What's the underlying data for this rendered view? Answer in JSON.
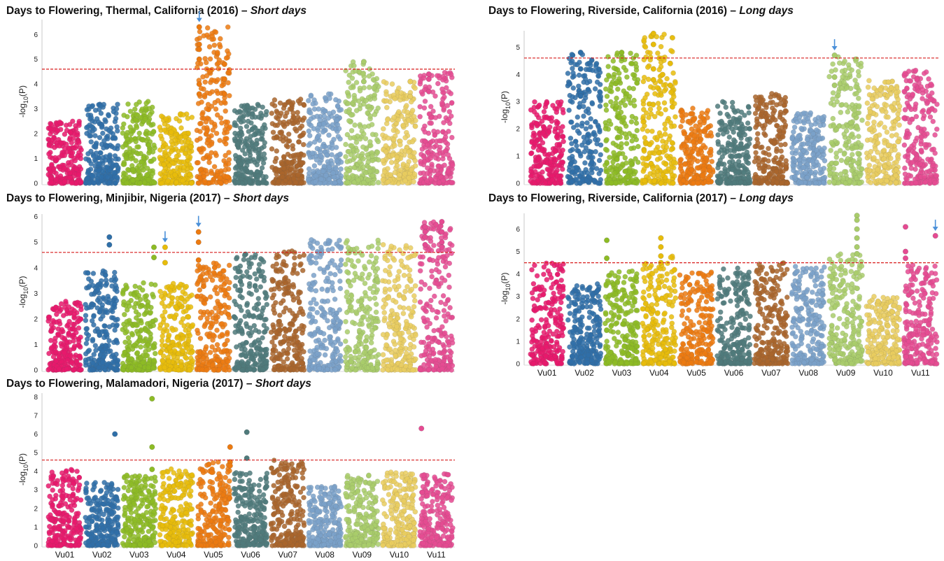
{
  "chart_data": [
    {
      "id": "p1",
      "type": "scatter",
      "subtype": "manhattan",
      "title": "Days to Flowering, Thermal, California (2016) – ",
      "title_condition": "Short days",
      "ylabel": "-log10(P)",
      "ylim": [
        0,
        6.6
      ],
      "yticks": [
        0,
        1,
        2,
        3,
        4,
        5,
        6
      ],
      "threshold": 4.6,
      "show_xlabels": false,
      "chromosomes": [
        "Vu01",
        "Vu02",
        "Vu03",
        "Vu04",
        "Vu05",
        "Vu06",
        "Vu07",
        "Vu08",
        "Vu09",
        "Vu10",
        "Vu11"
      ],
      "chrom_colors": [
        "#e8196c",
        "#2f6fa8",
        "#8dbb25",
        "#e7bc0b",
        "#ec7a10",
        "#4f7a7b",
        "#a9652b",
        "#7aa1c9",
        "#a9cc6b",
        "#e9cd5f",
        "#e54b92"
      ],
      "chrom_max": [
        2.5,
        3.2,
        3.3,
        2.8,
        6.3,
        3.2,
        3.5,
        3.6,
        4.9,
        4.1,
        4.5
      ],
      "peaks": [
        {
          "chrom": 4,
          "pos": 0.12,
          "values": [
            6.3,
            5.6,
            5.4,
            5.0,
            4.0,
            3.6
          ]
        },
        {
          "chrom": 4,
          "pos": 0.8,
          "values": [
            4.8,
            4.2,
            3.6
          ]
        },
        {
          "chrom": 8,
          "pos": 0.55,
          "values": [
            4.9,
            4.1
          ]
        },
        {
          "chrom": 9,
          "pos": 0.8,
          "values": [
            4.1,
            3.5
          ]
        },
        {
          "chrom": 10,
          "pos": 0.3,
          "values": [
            4.4,
            4.2,
            3.7
          ]
        }
      ],
      "arrows": [
        {
          "chrom": 4,
          "pos": 0.12
        }
      ]
    },
    {
      "id": "p2",
      "type": "scatter",
      "subtype": "manhattan",
      "title": "Days to Flowering, Riverside, California (2016) – ",
      "title_condition": "Long days",
      "ylabel": "-log10(P)",
      "ylim": [
        0,
        5.6
      ],
      "yticks": [
        0,
        1,
        2,
        3,
        4,
        5
      ],
      "threshold": 4.6,
      "show_xlabels": false,
      "chromosomes": [
        "Vu01",
        "Vu02",
        "Vu03",
        "Vu04",
        "Vu05",
        "Vu06",
        "Vu07",
        "Vu08",
        "Vu09",
        "Vu10",
        "Vu11"
      ],
      "chrom_colors": [
        "#e8196c",
        "#2f6fa8",
        "#8dbb25",
        "#e7bc0b",
        "#ec7a10",
        "#4f7a7b",
        "#a9652b",
        "#7aa1c9",
        "#a9cc6b",
        "#e9cd5f",
        "#e54b92"
      ],
      "chrom_max": [
        3.0,
        4.8,
        4.8,
        5.5,
        2.8,
        3.0,
        3.3,
        2.6,
        4.7,
        3.8,
        4.2
      ],
      "peaks": [
        {
          "chrom": 1,
          "pos": 0.4,
          "values": [
            4.8,
            4.2,
            3.3,
            3.2
          ]
        },
        {
          "chrom": 2,
          "pos": 0.5,
          "values": [
            4.8,
            4.6
          ]
        },
        {
          "chrom": 3,
          "pos": 0.35,
          "values": [
            5.5,
            5.1,
            4.2,
            3.8
          ]
        },
        {
          "chrom": 3,
          "pos": 0.8,
          "values": [
            4.4,
            3.6
          ]
        },
        {
          "chrom": 8,
          "pos": 0.2,
          "values": [
            4.7,
            3.9,
            3.6
          ]
        }
      ],
      "arrows": [
        {
          "chrom": 8,
          "pos": 0.2
        }
      ]
    },
    {
      "id": "p3",
      "type": "scatter",
      "subtype": "manhattan",
      "title": "Days to Flowering, Minjibir, Nigeria (2017) – ",
      "title_condition": "Short days",
      "ylabel": "-log10(P)",
      "ylim": [
        0,
        6.1
      ],
      "yticks": [
        0,
        1,
        2,
        3,
        4,
        5,
        6
      ],
      "threshold": 4.6,
      "show_xlabels": false,
      "chromosomes": [
        "Vu01",
        "Vu02",
        "Vu03",
        "Vu04",
        "Vu05",
        "Vu06",
        "Vu07",
        "Vu08",
        "Vu09",
        "Vu10",
        "Vu11"
      ],
      "chrom_colors": [
        "#e8196c",
        "#2f6fa8",
        "#8dbb25",
        "#e7bc0b",
        "#ec7a10",
        "#4f7a7b",
        "#a9652b",
        "#7aa1c9",
        "#a9cc6b",
        "#e9cd5f",
        "#e54b92"
      ],
      "chrom_max": [
        2.7,
        3.9,
        3.5,
        3.4,
        4.2,
        4.7,
        4.7,
        5.1,
        5.1,
        5.0,
        5.8
      ],
      "peaks": [
        {
          "chrom": 1,
          "pos": 0.7,
          "values": [
            5.2,
            4.9
          ]
        },
        {
          "chrom": 2,
          "pos": 0.9,
          "values": [
            4.8,
            4.4
          ]
        },
        {
          "chrom": 3,
          "pos": 0.2,
          "values": [
            4.8,
            4.2
          ]
        },
        {
          "chrom": 4,
          "pos": 0.1,
          "values": [
            5.4,
            5.0,
            4.3
          ]
        },
        {
          "chrom": 10,
          "pos": 0.2,
          "values": [
            5.6,
            5.4,
            5.2,
            4.9
          ]
        },
        {
          "chrom": 10,
          "pos": 0.65,
          "values": [
            5.8,
            5.4,
            5.0,
            4.8
          ]
        }
      ],
      "arrows": [
        {
          "chrom": 3,
          "pos": 0.2
        },
        {
          "chrom": 4,
          "pos": 0.1
        }
      ]
    },
    {
      "id": "p4",
      "type": "scatter",
      "subtype": "manhattan",
      "title": "Days to Flowering, Riverside, California (2017) – ",
      "title_condition": "Long days",
      "ylabel": "-log10(P)",
      "ylim": [
        0,
        6.7
      ],
      "yticks": [
        0,
        1,
        2,
        3,
        4,
        5,
        6
      ],
      "threshold": 4.5,
      "show_xlabels": true,
      "chromosomes": [
        "Vu01",
        "Vu02",
        "Vu03",
        "Vu04",
        "Vu05",
        "Vu06",
        "Vu07",
        "Vu08",
        "Vu09",
        "Vu10",
        "Vu11"
      ],
      "chrom_colors": [
        "#e8196c",
        "#2f6fa8",
        "#8dbb25",
        "#e7bc0b",
        "#ec7a10",
        "#4f7a7b",
        "#a9652b",
        "#7aa1c9",
        "#a9cc6b",
        "#e9cd5f",
        "#e54b92"
      ],
      "chrom_max": [
        4.5,
        3.6,
        4.2,
        4.8,
        4.1,
        4.3,
        4.5,
        4.4,
        4.9,
        3.0,
        4.4
      ],
      "peaks": [
        {
          "chrom": 2,
          "pos": 0.1,
          "values": [
            5.5,
            4.7
          ]
        },
        {
          "chrom": 3,
          "pos": 0.55,
          "values": [
            5.6,
            5.2,
            4.8,
            4.5
          ]
        },
        {
          "chrom": 8,
          "pos": 0.8,
          "values": [
            6.6,
            6.4,
            6.0,
            5.6,
            5.2,
            4.9
          ]
        },
        {
          "chrom": 10,
          "pos": 0.1,
          "values": [
            6.1,
            5.0,
            4.7
          ]
        },
        {
          "chrom": 10,
          "pos": 0.9,
          "values": [
            5.7
          ]
        }
      ],
      "arrows": [
        {
          "chrom": 10,
          "pos": 0.9
        }
      ]
    },
    {
      "id": "p5",
      "type": "scatter",
      "subtype": "manhattan",
      "title": "Days to Flowering, Malamadori, Nigeria (2017) – ",
      "title_condition": "Short days",
      "ylabel": "-log10(P)",
      "ylim": [
        0,
        8.2
      ],
      "yticks": [
        0,
        1,
        2,
        3,
        4,
        5,
        6,
        7,
        8
      ],
      "threshold": 4.6,
      "show_xlabels": true,
      "chromosomes": [
        "Vu01",
        "Vu02",
        "Vu03",
        "Vu04",
        "Vu05",
        "Vu06",
        "Vu07",
        "Vu08",
        "Vu09",
        "Vu10",
        "Vu11"
      ],
      "chrom_colors": [
        "#e8196c",
        "#2f6fa8",
        "#8dbb25",
        "#e7bc0b",
        "#ec7a10",
        "#4f7a7b",
        "#a9652b",
        "#7aa1c9",
        "#a9cc6b",
        "#e9cd5f",
        "#e54b92"
      ],
      "chrom_max": [
        4.1,
        3.4,
        3.8,
        4.2,
        4.5,
        4.0,
        4.6,
        3.2,
        3.8,
        4.0,
        3.9
      ],
      "peaks": [
        {
          "chrom": 1,
          "pos": 0.85,
          "values": [
            6.0
          ]
        },
        {
          "chrom": 2,
          "pos": 0.85,
          "values": [
            7.9,
            5.3,
            4.1
          ]
        },
        {
          "chrom": 4,
          "pos": 0.95,
          "values": [
            5.3,
            4.5,
            4.3
          ]
        },
        {
          "chrom": 5,
          "pos": 0.4,
          "values": [
            6.1,
            4.7
          ]
        },
        {
          "chrom": 10,
          "pos": 0.1,
          "values": [
            6.3
          ]
        }
      ],
      "arrows": []
    }
  ]
}
